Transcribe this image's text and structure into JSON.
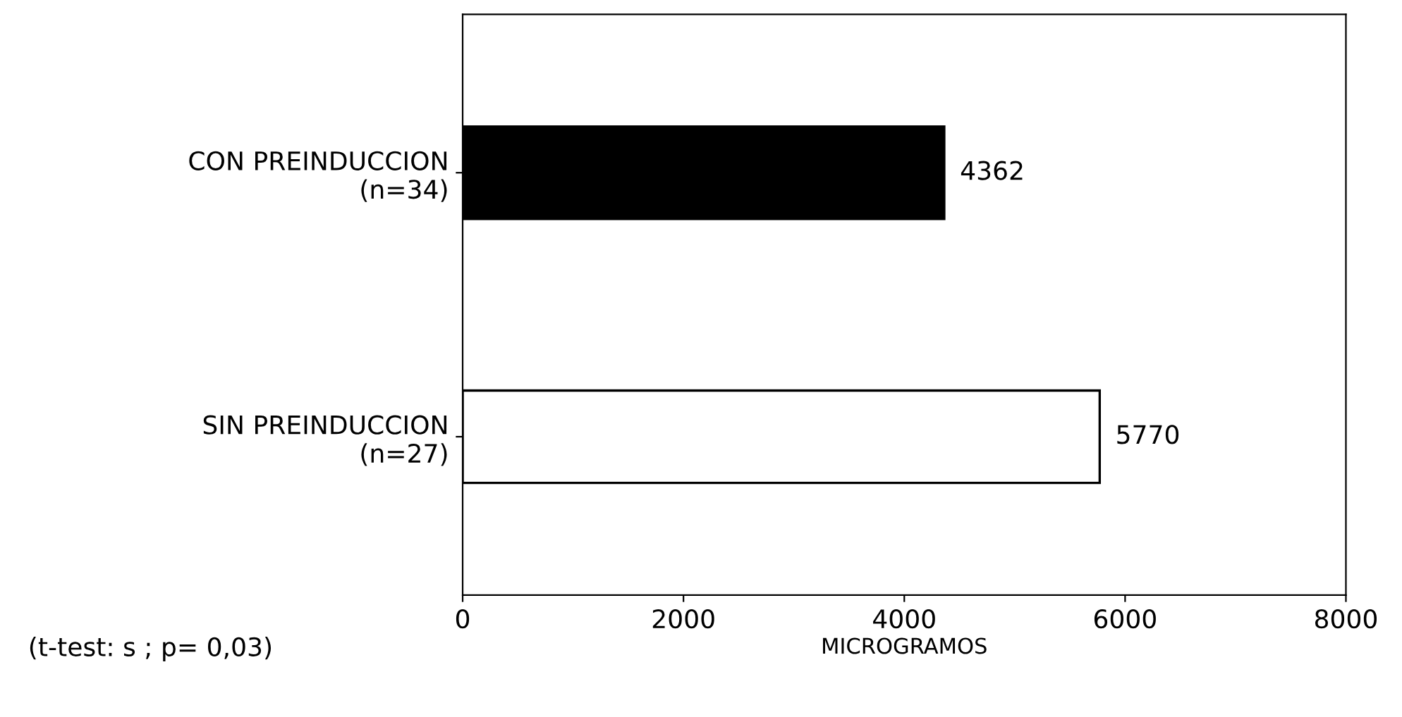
{
  "chart_data": {
    "type": "bar",
    "orientation": "horizontal",
    "categories": [
      "CON PREINDUCCION\n(n=34)",
      "SIN PREINDUCCION\n(n=27)"
    ],
    "values": [
      4362,
      5770
    ],
    "colors": [
      "#000000",
      "#ffffff"
    ],
    "xlim": [
      0,
      8000
    ],
    "xticks": [
      0,
      2000,
      4000,
      6000,
      8000
    ],
    "xlabel": "MICROGRAMOS",
    "annotations": [
      "(t-test: s ; p= 0,03)"
    ],
    "data_labels": true,
    "grid": false,
    "legend": false
  }
}
